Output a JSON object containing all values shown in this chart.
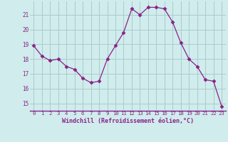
{
  "x": [
    0,
    1,
    2,
    3,
    4,
    5,
    6,
    7,
    8,
    9,
    10,
    11,
    12,
    13,
    14,
    15,
    16,
    17,
    18,
    19,
    20,
    21,
    22,
    23
  ],
  "y": [
    18.9,
    18.2,
    17.9,
    18.0,
    17.5,
    17.3,
    16.7,
    16.4,
    16.5,
    18.0,
    18.9,
    19.8,
    21.4,
    21.0,
    21.5,
    21.5,
    21.4,
    20.5,
    19.1,
    18.0,
    17.5,
    16.6,
    16.5,
    14.8
  ],
  "line_color": "#882288",
  "marker": "D",
  "marker_size": 2.5,
  "bg_color": "#d0ecec",
  "grid_color": "#aacccc",
  "xlabel": "Windchill (Refroidissement éolien,°C)",
  "xlabel_color": "#882288",
  "tick_color": "#882288",
  "ylim": [
    14.5,
    21.9
  ],
  "xlim": [
    -0.5,
    23.5
  ],
  "yticks": [
    15,
    16,
    17,
    18,
    19,
    20,
    21
  ],
  "xticks": [
    0,
    1,
    2,
    3,
    4,
    5,
    6,
    7,
    8,
    9,
    10,
    11,
    12,
    13,
    14,
    15,
    16,
    17,
    18,
    19,
    20,
    21,
    22,
    23
  ]
}
